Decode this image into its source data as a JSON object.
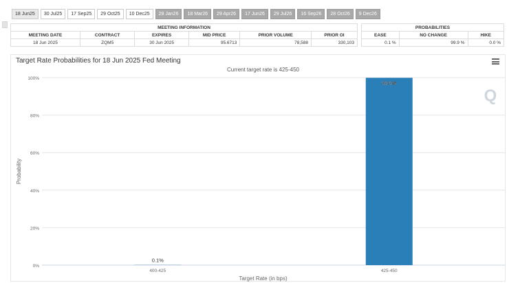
{
  "tabs": [
    {
      "label": "18 Jun25",
      "state": "active"
    },
    {
      "label": "30 Jul25",
      "state": "normal"
    },
    {
      "label": "17 Sep25",
      "state": "normal"
    },
    {
      "label": "29 Oct25",
      "state": "normal"
    },
    {
      "label": "10 Dec25",
      "state": "normal"
    },
    {
      "label": "28 Jan26",
      "state": "future"
    },
    {
      "label": "18 Mar26",
      "state": "future"
    },
    {
      "label": "29 Apr26",
      "state": "future"
    },
    {
      "label": "17 Jun26",
      "state": "future"
    },
    {
      "label": "29 Jul26",
      "state": "future"
    },
    {
      "label": "16 Sep26",
      "state": "future"
    },
    {
      "label": "28 Oct26",
      "state": "future"
    },
    {
      "label": "9 Dec26",
      "state": "future"
    }
  ],
  "meeting_info": {
    "heading": "MEETING INFORMATION",
    "columns": [
      "MEETING DATE",
      "CONTRACT",
      "EXPIRES",
      "MID PRICE",
      "PRIOR VOLUME",
      "PRIOR OI"
    ],
    "row": [
      "18 Jun 2025",
      "ZQM5",
      "30 Jun 2025",
      "95.6713",
      "78,588",
      "330,103"
    ]
  },
  "probabilities": {
    "heading": "PROBABILITIES",
    "columns": [
      "EASE",
      "NO CHANGE",
      "HIKE"
    ],
    "row": [
      "0.1 %",
      "99.9 %",
      "0.0 %"
    ]
  },
  "chart_data": {
    "type": "bar",
    "title": "Target Rate Probabilities for 18 Jun 2025 Fed Meeting",
    "subtitle": "Current target rate is 425-450",
    "xlabel": "Target Rate (in bps)",
    "ylabel": "Probability",
    "categories": [
      "400-425",
      "425-450"
    ],
    "values": [
      0.1,
      99.9
    ],
    "data_labels": [
      "0.1%",
      "99.9%"
    ],
    "ylim": [
      0,
      100
    ],
    "yticks": [
      0,
      20,
      40,
      60,
      80,
      100
    ],
    "ytick_labels": [
      "0%",
      "20%",
      "40%",
      "60%",
      "80%",
      "100%"
    ],
    "bar_color": "#2b7fb9",
    "grid": true,
    "legend": "none"
  },
  "colors": {
    "bar": "#2b7fb9",
    "grid": "#e6e6e6",
    "watermark": "#cfd6de"
  }
}
